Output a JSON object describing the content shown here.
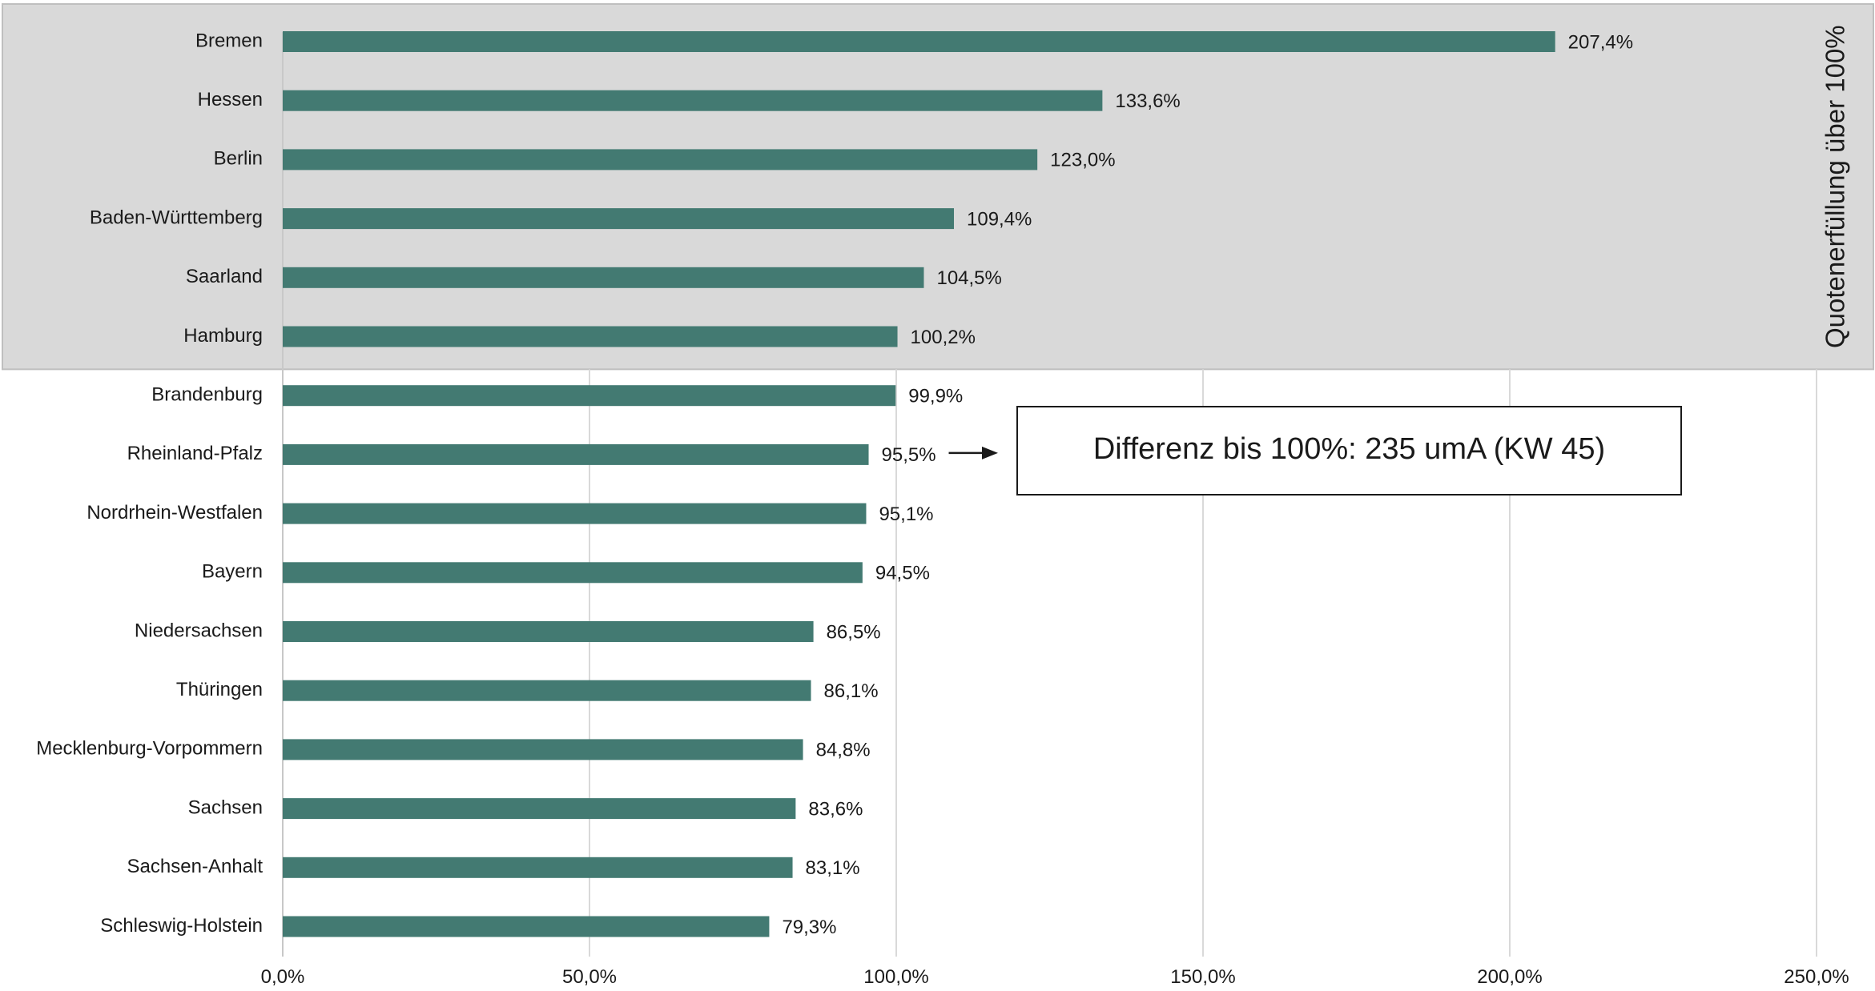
{
  "chart_data": {
    "type": "bar",
    "orientation": "horizontal",
    "categories": [
      "Bremen",
      "Hessen",
      "Berlin",
      "Baden-Württemberg",
      "Saarland",
      "Hamburg",
      "Brandenburg",
      "Rheinland-Pfalz",
      "Nordrhein-Westfalen",
      "Bayern",
      "Niedersachsen",
      "Thüringen",
      "Mecklenburg-Vorpommern",
      "Sachsen",
      "Sachsen-Anhalt",
      "Schleswig-Holstein"
    ],
    "values": [
      207.4,
      133.6,
      123.0,
      109.4,
      104.5,
      100.2,
      99.9,
      95.5,
      95.1,
      94.5,
      86.5,
      86.1,
      84.8,
      83.6,
      83.1,
      79.3
    ],
    "value_labels": [
      "207,4%",
      "133,6%",
      "123,0%",
      "109,4%",
      "104,5%",
      "100,2%",
      "99,9%",
      "95,5%",
      "95,1%",
      "94,5%",
      "86,5%",
      "86,1%",
      "84,8%",
      "83,6%",
      "83,1%",
      "79,3%"
    ],
    "xlim": [
      0,
      250
    ],
    "x_ticks": [
      0,
      50,
      100,
      150,
      200,
      250
    ],
    "x_tick_labels": [
      "0,0%",
      "50,0%",
      "100,0%",
      "150,0%",
      "200,0%",
      "250,0%"
    ],
    "grid": "vertical",
    "bar_color": "#437a72",
    "highlight_band": {
      "label": "Quotenerfüllung über 100%",
      "categories_count": 6,
      "fill": "#d9d9d9",
      "border": "#bfbfbf"
    },
    "annotation": {
      "text": "Differenz bis 100%: 235 umA (KW 45)",
      "points_to": "Rheinland-Pfalz"
    }
  }
}
